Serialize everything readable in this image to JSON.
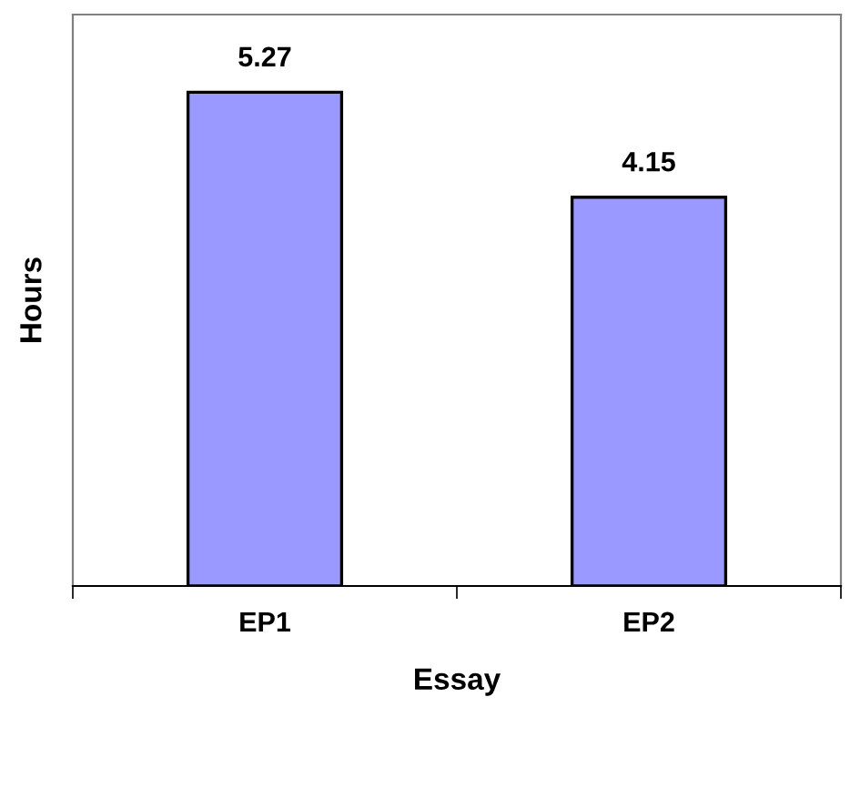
{
  "chart_data": {
    "type": "bar",
    "xlabel": "Essay",
    "ylabel": "Hours",
    "categories": [
      "EP1",
      "EP2"
    ],
    "values": [
      5.27,
      4.15
    ],
    "color": "#9999ff",
    "ylim": [
      0,
      6.1
    ],
    "tick_labels": "x",
    "data_labels": true,
    "grid": false,
    "legend": false
  }
}
